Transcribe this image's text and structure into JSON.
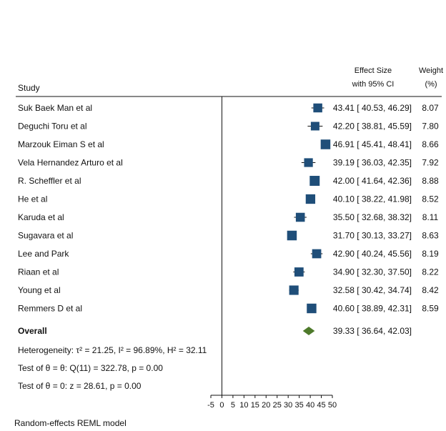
{
  "chart_data": {
    "type": "forest",
    "header": {
      "study": "Study",
      "effect_line1": "Effect Size",
      "effect_line2": "with 95% CI",
      "weight_line1": "Weight",
      "weight_line2": "(%)"
    },
    "studies": [
      {
        "name": "Suk Baek Man et al",
        "es": 43.41,
        "lo": 40.53,
        "hi": 46.29,
        "weight": 8.07,
        "ci_text": "43.41 [ 40.53, 46.29]",
        "weight_text": "8.07"
      },
      {
        "name": "Deguchi Toru et al",
        "es": 42.2,
        "lo": 38.81,
        "hi": 45.59,
        "weight": 7.8,
        "ci_text": "42.20 [ 38.81, 45.59]",
        "weight_text": "7.80"
      },
      {
        "name": "Marzouk  Eiman S et al",
        "es": 46.91,
        "lo": 45.41,
        "hi": 48.41,
        "weight": 8.66,
        "ci_text": "46.91 [ 45.41, 48.41]",
        "weight_text": "8.66"
      },
      {
        "name": "Vela Hernandez Arturo et al",
        "es": 39.19,
        "lo": 36.03,
        "hi": 42.35,
        "weight": 7.92,
        "ci_text": "39.19 [ 36.03, 42.35]",
        "weight_text": "7.92"
      },
      {
        "name": "R. Scheffler et al",
        "es": 42.0,
        "lo": 41.64,
        "hi": 42.36,
        "weight": 8.88,
        "ci_text": "42.00 [ 41.64, 42.36]",
        "weight_text": "8.88"
      },
      {
        "name": "He et al",
        "es": 40.1,
        "lo": 38.22,
        "hi": 41.98,
        "weight": 8.52,
        "ci_text": "40.10 [ 38.22, 41.98]",
        "weight_text": "8.52"
      },
      {
        "name": "Karuda et al",
        "es": 35.5,
        "lo": 32.68,
        "hi": 38.32,
        "weight": 8.11,
        "ci_text": "35.50 [ 32.68, 38.32]",
        "weight_text": "8.11"
      },
      {
        "name": "Sugavara et al",
        "es": 31.7,
        "lo": 30.13,
        "hi": 33.27,
        "weight": 8.63,
        "ci_text": "31.70 [ 30.13, 33.27]",
        "weight_text": "8.63"
      },
      {
        "name": "Lee and Park",
        "es": 42.9,
        "lo": 40.24,
        "hi": 45.56,
        "weight": 8.19,
        "ci_text": "42.90 [ 40.24, 45.56]",
        "weight_text": "8.19"
      },
      {
        "name": "Riaan et al",
        "es": 34.9,
        "lo": 32.3,
        "hi": 37.5,
        "weight": 8.22,
        "ci_text": "34.90 [ 32.30, 37.50]",
        "weight_text": "8.22"
      },
      {
        "name": "Young et al",
        "es": 32.58,
        "lo": 30.42,
        "hi": 34.74,
        "weight": 8.42,
        "ci_text": "32.58 [ 30.42, 34.74]",
        "weight_text": "8.42"
      },
      {
        "name": "Remmers D et al",
        "es": 40.6,
        "lo": 38.89,
        "hi": 42.31,
        "weight": 8.59,
        "ci_text": "40.60 [ 38.89, 42.31]",
        "weight_text": "8.59"
      }
    ],
    "overall": {
      "name": "Overall",
      "es": 39.33,
      "lo": 36.64,
      "hi": 42.03,
      "ci_text": "39.33 [ 36.64, 42.03]"
    },
    "stats": [
      "Heterogeneity: τ² = 21.25, I² = 96.89%, H² = 32.11",
      "Test of θ = θ: Q(11) = 322.78, p = 0.00",
      "Test of θ = 0: z = 28.61, p = 0.00"
    ],
    "model_note": "Random-effects REML model",
    "x_ticks": [
      -5,
      0,
      5,
      10,
      15,
      20,
      25,
      30,
      35,
      40,
      45,
      50
    ],
    "xlim": [
      -5,
      50
    ],
    "reference_line_x": 0,
    "marker_color": "#1f4e79",
    "overall_color": "#4e7a2b"
  }
}
